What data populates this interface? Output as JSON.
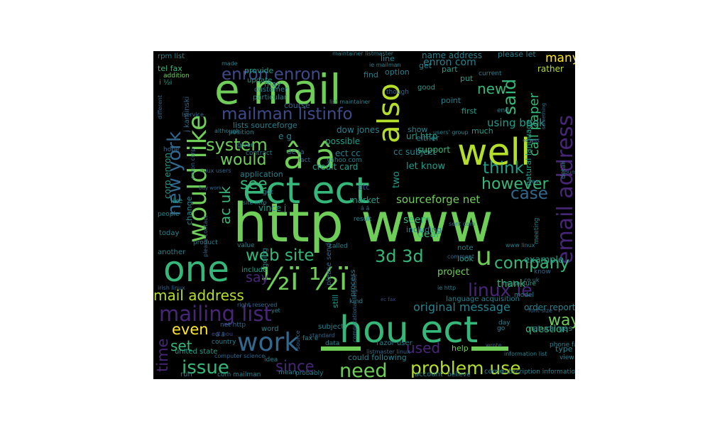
{
  "colors": {
    "background": "#000000",
    "page": "#ffffff",
    "palette": [
      "#440154",
      "#482677",
      "#3e4a89",
      "#31688e",
      "#26828e",
      "#1f9e89",
      "#35b779",
      "#6ece58",
      "#b5de2b",
      "#fde725"
    ]
  },
  "wordcloud": {
    "words": [
      {
        "text": "http www",
        "c": 7
      },
      {
        "text": "e mail",
        "c": 7
      },
      {
        "text": "ect ect",
        "c": 6
      },
      {
        "text": "hou ect",
        "c": 6
      },
      {
        "text": "½ï ½ï",
        "c": 7
      },
      {
        "text": "one",
        "c": 6
      },
      {
        "text": "â â",
        "c": 7
      },
      {
        "text": "would like",
        "c": 7
      },
      {
        "text": "well",
        "c": 8
      },
      {
        "text": "also",
        "c": 8
      },
      {
        "text": "work",
        "c": 3
      },
      {
        "text": "email address",
        "c": 1
      },
      {
        "text": "mailing list",
        "c": 1
      },
      {
        "text": "mailman listinfo",
        "c": 2
      },
      {
        "text": "new york",
        "c": 3
      },
      {
        "text": "problem use",
        "c": 8
      },
      {
        "text": "need",
        "c": 7
      },
      {
        "text": "u",
        "c": 7
      },
      {
        "text": "web site",
        "c": 6
      },
      {
        "text": "3d 3d",
        "c": 6
      },
      {
        "text": "linux ie",
        "c": 1
      },
      {
        "text": "system",
        "c": 7
      },
      {
        "text": "company",
        "c": 6
      },
      {
        "text": "said",
        "c": 6
      },
      {
        "text": "enron enron",
        "c": 2
      },
      {
        "text": "issue",
        "c": 6
      },
      {
        "text": "since",
        "c": 1
      },
      {
        "text": "used",
        "c": 1
      },
      {
        "text": "mail address",
        "c": 8
      },
      {
        "text": "case",
        "c": 3
      },
      {
        "text": "see",
        "c": 6
      },
      {
        "text": "however",
        "c": 6
      },
      {
        "text": "think",
        "c": 5
      },
      {
        "text": "new",
        "c": 6
      },
      {
        "text": "would",
        "c": 7
      },
      {
        "text": "even",
        "c": 9
      },
      {
        "text": "way",
        "c": 7
      },
      {
        "text": "time",
        "c": 1
      },
      {
        "text": "say",
        "c": 1
      },
      {
        "text": "set",
        "c": 6
      },
      {
        "text": "ac uk",
        "c": 6
      },
      {
        "text": "original message",
        "c": 4
      },
      {
        "text": "call paper",
        "c": 6
      },
      {
        "text": "many",
        "c": 9
      },
      {
        "text": "sourceforge net",
        "c": 7
      },
      {
        "text": "using book",
        "c": 5
      },
      {
        "text": "natural language",
        "c": 5
      },
      {
        "text": "enron com",
        "c": 4
      },
      {
        "text": "rather",
        "c": 8
      },
      {
        "text": "name address",
        "c": 4
      },
      {
        "text": "please let",
        "c": 4
      },
      {
        "text": "let know",
        "c": 5
      },
      {
        "text": "dow jones",
        "c": 4
      },
      {
        "text": "credit card",
        "c": 5
      },
      {
        "text": "cc subject",
        "c": 4
      },
      {
        "text": "url http",
        "c": 5
      },
      {
        "text": "support",
        "c": 6
      },
      {
        "text": "possible",
        "c": 5
      },
      {
        "text": "project",
        "c": 7
      },
      {
        "text": "order report",
        "c": 4
      },
      {
        "text": "thank",
        "c": 6
      },
      {
        "text": "example",
        "c": 5
      },
      {
        "text": "question",
        "c": 6
      },
      {
        "text": "deal",
        "c": 6
      },
      {
        "text": "seem",
        "c": 6
      },
      {
        "text": "including",
        "c": 4
      },
      {
        "text": "market",
        "c": 5
      },
      {
        "text": "application",
        "c": 4
      },
      {
        "text": "vince j",
        "c": 5
      },
      {
        "text": "corp enron",
        "c": 5
      },
      {
        "text": "tel fax",
        "c": 6
      },
      {
        "text": "rpm list",
        "c": 4
      },
      {
        "text": "provide",
        "c": 5
      },
      {
        "text": "customer",
        "c": 4
      },
      {
        "text": "particular",
        "c": 4
      },
      {
        "text": "course",
        "c": 3
      },
      {
        "text": "may",
        "c": 4
      },
      {
        "text": "lists sourceforge",
        "c": 4
      },
      {
        "text": "e g",
        "c": 4
      },
      {
        "text": "position",
        "c": 4
      },
      {
        "text": "ect cc",
        "c": 4
      },
      {
        "text": "yahoo com",
        "c": 4
      },
      {
        "text": "fact",
        "c": 3
      },
      {
        "text": "de la",
        "c": 3
      },
      {
        "text": "two",
        "c": 5
      },
      {
        "text": "etc",
        "c": 2
      },
      {
        "text": "either",
        "c": 4
      },
      {
        "text": "show",
        "c": 4
      },
      {
        "text": "good",
        "c": 5
      },
      {
        "text": "part",
        "c": 5
      },
      {
        "text": "get",
        "c": 4
      },
      {
        "text": "find",
        "c": 4
      },
      {
        "text": "line",
        "c": 4
      },
      {
        "text": "first",
        "c": 5
      },
      {
        "text": "point",
        "c": 4
      },
      {
        "text": "much",
        "c": 5
      },
      {
        "text": "put",
        "c": 5
      },
      {
        "text": "addition",
        "c": 7
      },
      {
        "text": "today",
        "c": 4
      },
      {
        "text": "people",
        "c": 4
      },
      {
        "text": "another",
        "c": 4
      },
      {
        "text": "product",
        "c": 4
      },
      {
        "text": "value",
        "c": 4
      },
      {
        "text": "include",
        "c": 5
      },
      {
        "text": "word",
        "c": 4
      },
      {
        "text": "united state",
        "c": 5
      },
      {
        "text": "country",
        "c": 4
      },
      {
        "text": "subject",
        "c": 4
      },
      {
        "text": "data",
        "c": 4
      },
      {
        "text": "fax e",
        "c": 4
      },
      {
        "text": "could following",
        "c": 4
      },
      {
        "text": "help",
        "c": 7
      },
      {
        "text": "type",
        "c": 4
      },
      {
        "text": "view",
        "c": 4
      },
      {
        "text": "phone fax",
        "c": 4
      },
      {
        "text": "natural gas",
        "c": 4
      },
      {
        "text": "make sure",
        "c": 5
      },
      {
        "text": "language acquisition",
        "c": 4
      },
      {
        "text": "note",
        "c": 4
      },
      {
        "text": "look",
        "c": 5
      },
      {
        "text": "process",
        "c": 4
      },
      {
        "text": "still",
        "c": 5
      },
      {
        "text": "called",
        "c": 4
      },
      {
        "text": "going",
        "c": 4
      },
      {
        "text": "please send",
        "c": 3
      },
      {
        "text": "change",
        "c": 4
      },
      {
        "text": "like",
        "c": 5
      },
      {
        "text": "meeting",
        "c": 4
      },
      {
        "text": "know",
        "c": 3
      },
      {
        "text": "detail",
        "c": 4
      },
      {
        "text": "razor user",
        "c": 4
      },
      {
        "text": "account",
        "c": 4
      },
      {
        "text": "come",
        "c": 4
      },
      {
        "text": "believe",
        "c": 4
      },
      {
        "text": "subscription information",
        "c": 4
      },
      {
        "text": "information list",
        "c": 4
      },
      {
        "text": "probably",
        "c": 4
      },
      {
        "text": "mean",
        "c": 4
      },
      {
        "text": "idea",
        "c": 4
      },
      {
        "text": "com mailman",
        "c": 4
      },
      {
        "text": "run",
        "c": 4
      },
      {
        "text": "computer science",
        "c": 3
      },
      {
        "text": "net http",
        "c": 3
      },
      {
        "text": "listmaster linux",
        "c": 3
      },
      {
        "text": "source",
        "c": 3
      },
      {
        "text": "standard",
        "c": 3
      },
      {
        "text": "right reserved",
        "c": 3
      },
      {
        "text": "model",
        "c": 4
      },
      {
        "text": "update",
        "c": 5
      },
      {
        "text": "option",
        "c": 4
      },
      {
        "text": "current",
        "c": 4
      },
      {
        "text": "end",
        "c": 4
      },
      {
        "text": "though",
        "c": 3
      },
      {
        "text": "result",
        "c": 4
      },
      {
        "text": "given",
        "c": 4
      },
      {
        "text": "hope",
        "c": 3
      },
      {
        "text": "contract",
        "c": 4
      },
      {
        "text": "made",
        "c": 4
      },
      {
        "text": "list maintainer",
        "c": 4
      },
      {
        "text": "ie mailman",
        "c": 4
      },
      {
        "text": "maintainer listmaster",
        "c": 4
      },
      {
        "text": "i ½i",
        "c": 5
      },
      {
        "text": "lservice",
        "c": 3
      },
      {
        "text": "j kaminski",
        "c": 3
      },
      {
        "text": "enron corp",
        "c": 3
      },
      {
        "text": "although",
        "c": 4
      },
      {
        "text": "users' group",
        "c": 4
      },
      {
        "text": "linux users",
        "c": 3
      },
      {
        "text": "site http",
        "c": 4
      },
      {
        "text": "got",
        "c": 4
      },
      {
        "text": "www linux",
        "c": 4
      },
      {
        "text": "co uk",
        "c": 4
      },
      {
        "text": "ie http",
        "c": 4
      },
      {
        "text": "irish linux",
        "c": 3
      },
      {
        "text": "computational linguistic",
        "c": 3
      },
      {
        "text": "yet",
        "c": 4
      },
      {
        "text": "day",
        "c": 4
      },
      {
        "text": "font size",
        "c": 3
      },
      {
        "text": "year",
        "c": 3
      },
      {
        "text": "found",
        "c": 3
      },
      {
        "text": "comment",
        "c": 3
      },
      {
        "text": "kind",
        "c": 4
      },
      {
        "text": "go",
        "c": 4
      },
      {
        "text": "wrote",
        "c": 3
      },
      {
        "text": "please contact",
        "c": 3
      },
      {
        "text": "different",
        "c": 3
      },
      {
        "text": "something",
        "c": 3
      },
      {
        "text": "sent com",
        "c": 3
      },
      {
        "text": "buy work",
        "c": 3
      },
      {
        "text": "â â",
        "c": 3
      },
      {
        "text": "ect hou",
        "c": 2
      },
      {
        "text": "â ã",
        "c": 3
      },
      {
        "text": "ec fax",
        "c": 2
      },
      {
        "text": "ect ect",
        "c": 2
      }
    ]
  }
}
